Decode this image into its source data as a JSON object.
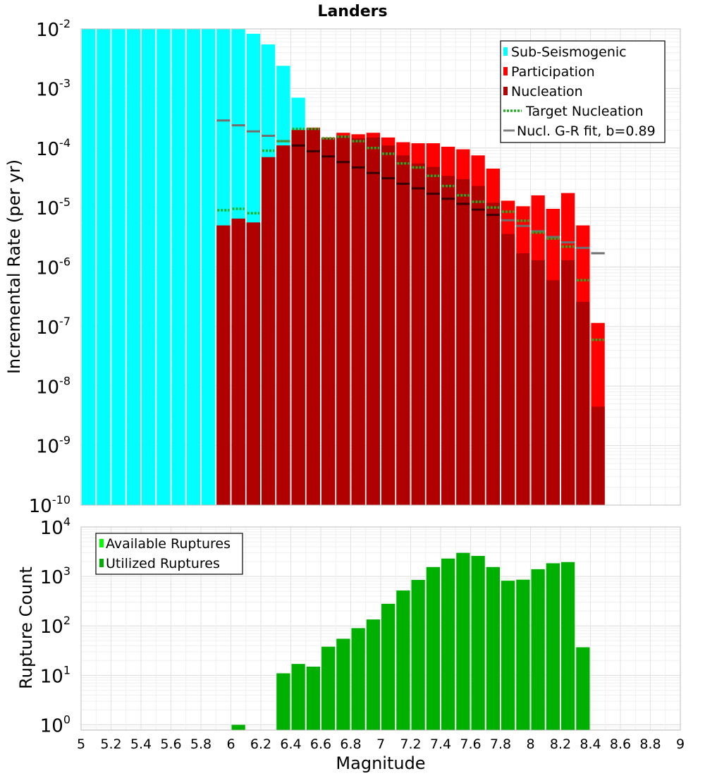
{
  "title": "Landers",
  "chart_data": [
    {
      "type": "bar",
      "panel": "rates",
      "ylabel": "Incremental Rate (per yr)",
      "xlabel": "",
      "yscale": "log",
      "ylim": [
        1e-10,
        0.01
      ],
      "xlim": [
        5,
        9
      ],
      "bin_width": 0.1,
      "y_tick_labels": [
        {
          "base": "10",
          "exp": "-10"
        },
        {
          "base": "10",
          "exp": "-9"
        },
        {
          "base": "10",
          "exp": "-8"
        },
        {
          "base": "10",
          "exp": "-7"
        },
        {
          "base": "10",
          "exp": "-6"
        },
        {
          "base": "10",
          "exp": "-5"
        },
        {
          "base": "10",
          "exp": "-4"
        },
        {
          "base": "10",
          "exp": "-3"
        },
        {
          "base": "10",
          "exp": "-2"
        }
      ],
      "legend": {
        "position": "top-right",
        "entries": [
          "Sub-Seismogenic",
          "Participation",
          "Nucleation",
          "Target Nucleation",
          "Nucl. G-R fit, b=0.89"
        ]
      },
      "colors": {
        "sub_seismogenic": "#00ffff",
        "participation": "#ff0000",
        "nucleation": "#b00000",
        "target": "#22b022",
        "fit": "#808080"
      },
      "series": [
        {
          "name": "Sub-Seismogenic",
          "x": [
            5.05,
            5.15,
            5.25,
            5.35,
            5.45,
            5.55,
            5.65,
            5.75,
            5.85,
            5.95,
            6.05,
            6.15,
            6.25,
            6.35,
            6.45
          ],
          "values": [
            0.01,
            0.01,
            0.01,
            0.01,
            0.01,
            0.01,
            0.01,
            0.01,
            0.01,
            0.01,
            0.01,
            0.0083,
            0.0055,
            0.0024,
            0.0007
          ]
        },
        {
          "name": "Participation",
          "x": [
            5.95,
            6.05,
            6.15,
            6.25,
            6.35,
            6.45,
            6.55,
            6.65,
            6.75,
            6.85,
            6.95,
            7.05,
            7.15,
            7.25,
            7.35,
            7.45,
            7.55,
            7.65,
            7.75,
            7.85,
            7.95,
            8.05,
            8.15,
            8.25,
            8.35,
            8.45
          ],
          "values": [
            5e-06,
            6.5e-06,
            5.6e-06,
            7e-05,
            0.00011,
            0.0002,
            0.00022,
            0.00015,
            0.00018,
            0.00017,
            0.00018,
            0.00015,
            0.000125,
            0.00012,
            0.00012,
            0.000105,
            9.5e-05,
            7.5e-05,
            4.5e-05,
            1.3e-05,
            1.05e-05,
            1.6e-05,
            9.5e-06,
            1.75e-05,
            5e-06,
            1.15e-07
          ]
        },
        {
          "name": "Nucleation",
          "x": [
            5.95,
            6.05,
            6.15,
            6.25,
            6.35,
            6.45,
            6.55,
            6.65,
            6.75,
            6.85,
            6.95,
            7.05,
            7.15,
            7.25,
            7.35,
            7.45,
            7.55,
            7.65,
            7.75,
            7.85,
            7.95,
            8.05,
            8.15,
            8.25,
            8.35,
            8.45
          ],
          "values": [
            5e-06,
            6.5e-06,
            5.6e-06,
            7e-05,
            0.00011,
            0.0002,
            0.00021,
            0.000145,
            0.00016,
            0.000145,
            0.00015,
            0.00011,
            7.5e-05,
            5.5e-05,
            4.8e-05,
            3.4e-05,
            3e-05,
            2.3e-05,
            1.2e-05,
            3.6e-06,
            1.7e-06,
            1.3e-06,
            6e-07,
            1.3e-06,
            2.6e-07,
            4.5e-09
          ]
        },
        {
          "name": "Target Nucleation",
          "x": [
            5.95,
            6.05,
            6.15,
            6.25,
            6.35,
            6.45,
            6.55,
            6.65,
            6.75,
            6.85,
            6.95,
            7.05,
            7.15,
            7.25,
            7.35,
            7.45,
            7.55,
            7.65,
            7.75,
            7.85,
            7.95,
            8.05,
            8.15,
            8.25,
            8.35,
            8.45
          ],
          "values": [
            9e-06,
            9.5e-06,
            8e-06,
            9e-05,
            0.00013,
            0.00021,
            0.00021,
            0.000145,
            0.000155,
            0.00013,
            0.0001,
            8e-05,
            5.5e-05,
            4.7e-05,
            3.4e-05,
            2.3e-05,
            1.6e-05,
            1.25e-05,
            1e-05,
            8.5e-06,
            6e-06,
            3.8e-06,
            3e-06,
            2.2e-06,
            6e-07,
            6e-08
          ]
        },
        {
          "name": "Nucl. G-R fit, b=0.89",
          "x": [
            5.95,
            6.05,
            6.15,
            6.25,
            6.35,
            6.45,
            6.55,
            6.65,
            6.75,
            6.85,
            6.95,
            7.05,
            7.15,
            7.25,
            7.35,
            7.45,
            7.55,
            7.65,
            7.75,
            7.85,
            7.95,
            8.05,
            8.15,
            8.25,
            8.35,
            8.45
          ],
          "values": [
            0.00029,
            0.00024,
            0.00019,
            0.00016,
            0.00013,
            0.00011,
            8.8e-05,
            7.2e-05,
            5.8e-05,
            4.7e-05,
            3.8e-05,
            3.1e-05,
            2.5e-05,
            2.1e-05,
            1.7e-05,
            1.4e-05,
            1.15e-05,
            9.2e-06,
            7.5e-06,
            6.1e-06,
            4.9e-06,
            4e-06,
            3.2e-06,
            2.6e-06,
            2.1e-06,
            1.7e-06
          ]
        }
      ]
    },
    {
      "type": "bar",
      "panel": "counts",
      "ylabel": "Rupture Count",
      "xlabel": "Magnitude",
      "yscale": "log",
      "ylim": [
        0.78,
        10000
      ],
      "xlim": [
        5,
        9
      ],
      "bin_width": 0.1,
      "x_tick_labels": [
        "5",
        "5.2",
        "5.4",
        "5.6",
        "5.8",
        "6",
        "6.2",
        "6.4",
        "6.6",
        "6.8",
        "7",
        "7.2",
        "7.4",
        "7.6",
        "7.8",
        "8",
        "8.2",
        "8.4",
        "8.6",
        "8.8",
        "9"
      ],
      "y_tick_labels": [
        {
          "base": "10",
          "exp": "0"
        },
        {
          "base": "10",
          "exp": "1"
        },
        {
          "base": "10",
          "exp": "2"
        },
        {
          "base": "10",
          "exp": "3"
        },
        {
          "base": "10",
          "exp": "4"
        }
      ],
      "legend": {
        "position": "top-left",
        "entries": [
          "Available Ruptures",
          "Utilized Ruptures"
        ]
      },
      "colors": {
        "available": "#00ff00",
        "utilized": "#00b000"
      },
      "series": [
        {
          "name": "Utilized Ruptures",
          "x": [
            6.05,
            6.35,
            6.45,
            6.55,
            6.65,
            6.75,
            6.85,
            6.95,
            7.05,
            7.15,
            7.25,
            7.35,
            7.45,
            7.55,
            7.65,
            7.75,
            7.85,
            7.95,
            8.05,
            8.15,
            8.25,
            8.35
          ],
          "values": [
            1,
            11,
            17,
            15,
            38,
            55,
            90,
            135,
            280,
            520,
            850,
            1550,
            2300,
            3000,
            2600,
            1550,
            820,
            860,
            1400,
            1850,
            1950,
            37
          ]
        }
      ]
    }
  ]
}
